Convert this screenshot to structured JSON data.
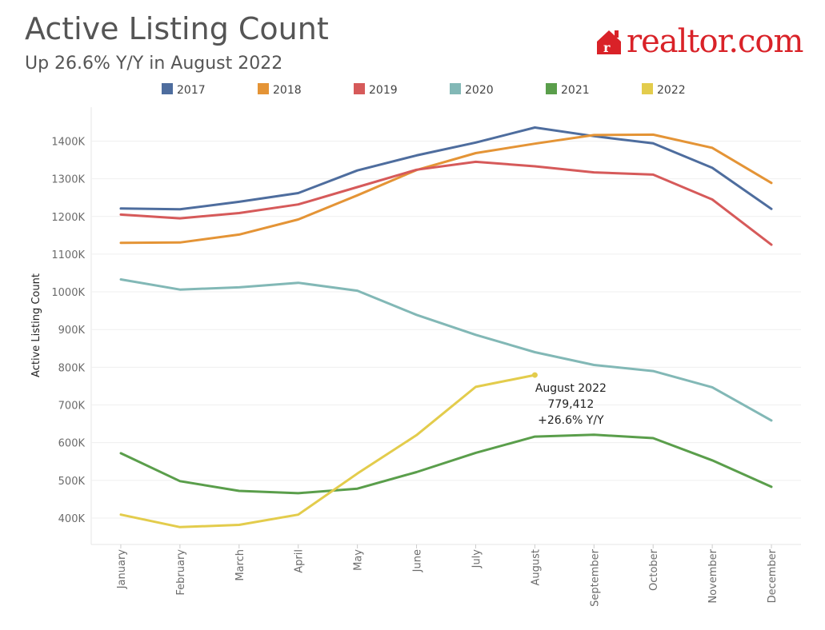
{
  "header": {
    "title": "Active Listing Count",
    "subtitle": "Up 26.6% Y/Y in August 2022",
    "brand": "realtor.com"
  },
  "chart_data": {
    "type": "line",
    "title": "Active Listing Count",
    "subtitle": "Up 26.6% Y/Y in August 2022",
    "xlabel": "",
    "ylabel": "Active Listing Count",
    "categories": [
      "January",
      "February",
      "March",
      "April",
      "May",
      "June",
      "July",
      "August",
      "September",
      "October",
      "November",
      "December"
    ],
    "ylim": [
      330000,
      1490000
    ],
    "yticks": [
      400000,
      500000,
      600000,
      700000,
      800000,
      900000,
      1000000,
      1100000,
      1200000,
      1300000,
      1400000
    ],
    "ytick_labels": [
      "400K",
      "500K",
      "600K",
      "700K",
      "800K",
      "900K",
      "1000K",
      "1100K",
      "1200K",
      "1300K",
      "1400K"
    ],
    "grid": true,
    "legend_position": "top",
    "series": [
      {
        "name": "2017",
        "color": "#4e6d9e",
        "values": [
          1221000,
          1219000,
          1239000,
          1262000,
          1322000,
          1362000,
          1396000,
          1436000,
          1413000,
          1394000,
          1329000,
          1220000
        ]
      },
      {
        "name": "2018",
        "color": "#e49436",
        "values": [
          1130000,
          1131000,
          1152000,
          1192000,
          1256000,
          1323000,
          1368000,
          1393000,
          1416000,
          1417000,
          1382000,
          1289000
        ]
      },
      {
        "name": "2019",
        "color": "#d65a5a",
        "values": [
          1205000,
          1195000,
          1209000,
          1232000,
          1278000,
          1324000,
          1345000,
          1333000,
          1317000,
          1311000,
          1245000,
          1125000
        ]
      },
      {
        "name": "2020",
        "color": "#82b8b6",
        "values": [
          1033000,
          1006000,
          1012000,
          1024000,
          1003000,
          939000,
          886000,
          840000,
          806000,
          790000,
          747000,
          659000
        ]
      },
      {
        "name": "2021",
        "color": "#5a9e4b",
        "values": [
          572000,
          498000,
          472000,
          466000,
          478000,
          522000,
          573000,
          616000,
          621000,
          612000,
          553000,
          483000
        ]
      },
      {
        "name": "2022",
        "color": "#e3cc4c",
        "values": [
          409000,
          376000,
          382000,
          409000,
          518000,
          620000,
          748000,
          779412,
          null,
          null,
          null,
          null
        ]
      }
    ],
    "annotation": {
      "category": "August",
      "series": "2022",
      "value": 779412,
      "lines": [
        "August 2022",
        "779,412",
        "+26.6% Y/Y"
      ]
    }
  }
}
